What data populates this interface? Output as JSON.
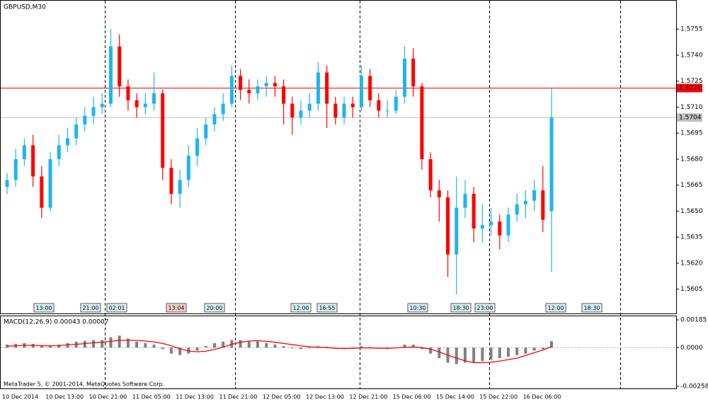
{
  "chart_data": [
    {
      "type": "candlestick",
      "title": "GBPUSD,M30",
      "bull_color": "#1fb4f0",
      "bear_color": "#ff0000",
      "ylim": [
        1.5591,
        1.5771
      ],
      "yticks": [
        1.5755,
        {
          "value": 1.574,
          "label": "1.5740"
        },
        1.5725,
        {
          "value": 1.571,
          "label": "1.5710"
        },
        1.5695,
        {
          "value": 1.568,
          "label": "1.5680"
        },
        1.5665,
        {
          "value": 1.565,
          "label": "1.5650"
        },
        1.5635,
        {
          "value": 1.562,
          "label": "1.5620"
        },
        1.5605
      ],
      "price_lines": [
        {
          "value": 1.5721,
          "color": "#ff0000"
        },
        {
          "value": 1.5704,
          "color": "#c0c0c0"
        }
      ],
      "events": [
        "13:00",
        "21:00",
        "02:01",
        "13:04",
        "20:00",
        "12:00",
        "16:55",
        "10:30",
        "18:30",
        "23:00",
        "12:00",
        "18:30"
      ],
      "candles": [
        [
          1.5664,
          1.5672,
          1.566,
          1.5668
        ],
        [
          1.5668,
          1.5686,
          1.5664,
          1.568
        ],
        [
          1.568,
          1.5692,
          1.5676,
          1.5688
        ],
        [
          1.5688,
          1.5694,
          1.5664,
          1.567
        ],
        [
          1.567,
          1.5676,
          1.5646,
          1.5652
        ],
        [
          1.5652,
          1.5684,
          1.565,
          1.568
        ],
        [
          1.568,
          1.5694,
          1.5676,
          1.5688
        ],
        [
          1.5688,
          1.5698,
          1.5684,
          1.5692
        ],
        [
          1.5692,
          1.5704,
          1.5688,
          1.57
        ],
        [
          1.57,
          1.571,
          1.5696,
          1.5705
        ],
        [
          1.5705,
          1.5716,
          1.57,
          1.571
        ],
        [
          1.571,
          1.5718,
          1.5706,
          1.5712
        ],
        [
          1.5712,
          1.5755,
          1.571,
          1.5745
        ],
        [
          1.5745,
          1.5752,
          1.5716,
          1.5722
        ],
        [
          1.5722,
          1.5726,
          1.5708,
          1.5714
        ],
        [
          1.5714,
          1.5718,
          1.5704,
          1.571
        ],
        [
          1.571,
          1.5718,
          1.5706,
          1.5712
        ],
        [
          1.5712,
          1.573,
          1.5708,
          1.5718
        ],
        [
          1.5718,
          1.572,
          1.5668,
          1.5675
        ],
        [
          1.5675,
          1.568,
          1.5654,
          1.566
        ],
        [
          1.566,
          1.5674,
          1.5652,
          1.5668
        ],
        [
          1.5668,
          1.5688,
          1.5664,
          1.5682
        ],
        [
          1.5682,
          1.5698,
          1.5676,
          1.5692
        ],
        [
          1.5692,
          1.5704,
          1.5688,
          1.57
        ],
        [
          1.57,
          1.571,
          1.5696,
          1.5706
        ],
        [
          1.5706,
          1.5718,
          1.5702,
          1.5712
        ],
        [
          1.5712,
          1.5734,
          1.571,
          1.5728
        ],
        [
          1.5728,
          1.5732,
          1.5714,
          1.572
        ],
        [
          1.572,
          1.5726,
          1.5712,
          1.5718
        ],
        [
          1.5718,
          1.5726,
          1.5714,
          1.5722
        ],
        [
          1.5722,
          1.5728,
          1.5716,
          1.5724
        ],
        [
          1.5724,
          1.5728,
          1.5716,
          1.5722
        ],
        [
          1.5722,
          1.5726,
          1.57,
          1.5712
        ],
        [
          1.5712,
          1.5716,
          1.5694,
          1.5704
        ],
        [
          1.5704,
          1.5714,
          1.57,
          1.5708
        ],
        [
          1.5708,
          1.5718,
          1.5704,
          1.5712
        ],
        [
          1.5712,
          1.5736,
          1.5708,
          1.573
        ],
        [
          1.573,
          1.5734,
          1.5698,
          1.5712
        ],
        [
          1.5712,
          1.5716,
          1.57,
          1.5704
        ],
        [
          1.5704,
          1.5716,
          1.57,
          1.5712
        ],
        [
          1.5712,
          1.5716,
          1.5704,
          1.571
        ],
        [
          1.571,
          1.5734,
          1.5708,
          1.5728
        ],
        [
          1.5728,
          1.5732,
          1.571,
          1.5714
        ],
        [
          1.5714,
          1.5718,
          1.5704,
          1.5708
        ],
        [
          1.5708,
          1.5714,
          1.5704,
          1.5708
        ],
        [
          1.5708,
          1.572,
          1.5706,
          1.5716
        ],
        [
          1.5716,
          1.5745,
          1.5712,
          1.5738
        ],
        [
          1.5738,
          1.5744,
          1.5716,
          1.5722
        ],
        [
          1.5722,
          1.5724,
          1.5674,
          1.568
        ],
        [
          1.568,
          1.5684,
          1.5658,
          1.5662
        ],
        [
          1.5662,
          1.5668,
          1.5644,
          1.5658
        ],
        [
          1.5658,
          1.5662,
          1.5612,
          1.5625
        ],
        [
          1.5625,
          1.567,
          1.5602,
          1.5652
        ],
        [
          1.5652,
          1.5668,
          1.5646,
          1.566
        ],
        [
          1.566,
          1.5664,
          1.5632,
          1.564
        ],
        [
          1.564,
          1.5654,
          1.5632,
          1.5642
        ],
        [
          1.5642,
          1.5652,
          1.5636,
          1.5644
        ],
        [
          1.5644,
          1.5648,
          1.5628,
          1.5636
        ],
        [
          1.5636,
          1.5652,
          1.5632,
          1.5648
        ],
        [
          1.5648,
          1.566,
          1.5644,
          1.5654
        ],
        [
          1.5654,
          1.5662,
          1.5646,
          1.5656
        ],
        [
          1.5656,
          1.5668,
          1.565,
          1.5662
        ],
        [
          1.5662,
          1.5676,
          1.5638,
          1.5645
        ],
        [
          1.565,
          1.5721,
          1.5615,
          1.5704
        ]
      ],
      "categories": [
        "10 Dec 2014",
        "10 Dec 13:00",
        "10 Dec 21:00",
        "11 Dec 05:00",
        "11 Dec 13:00",
        "11 Dec 21:00",
        "12 Dec 05:00",
        "12 Dec 13:00",
        "12 Dec 21:00",
        "15 Dec 06:00",
        "15 Dec 14:00",
        "15 Dec 22:00",
        "16 Dec 06:00"
      ]
    },
    {
      "type": "macd",
      "title": "MACD(12,26,9) 0.00043 0.00007",
      "footer": "MetaTrader 5, © 2001-2014, MetaQuotes Software Corp.",
      "ylim": [
        -0.00272,
        0.00209
      ],
      "yticks": [
        0.00185,
        {
          "value": 0,
          "label": "0.0000"
        },
        -0.00258
      ],
      "series": [
        {
          "name": "MACD",
          "color": "#808080",
          "values": [
            0.0002,
            0.00025,
            0.0003,
            0.00025,
            0.0001,
            0.0001,
            0.0002,
            0.0003,
            0.0004,
            0.00045,
            0.0005,
            0.0005,
            0.0007,
            0.0008,
            0.0006,
            0.0004,
            0.0003,
            0.0002,
            -0.0001,
            -0.0004,
            -0.0005,
            -0.0004,
            -0.0002,
            0.0001,
            0.0003,
            0.0004,
            0.0005,
            0.0005,
            0.0004,
            0.0004,
            0.0003,
            0.0002,
            0.0001,
            -5e-05,
            -0.0001,
            -5e-05,
            0.0001,
            5e-05,
            -5e-05,
            0,
            0,
            0.0001,
            5e-05,
            -5e-05,
            -0.0001,
            0,
            0.0002,
            0.0002,
            -0.0001,
            -0.0004,
            -0.0007,
            -0.001,
            -0.0011,
            -0.001,
            -0.001,
            -0.0009,
            -0.0008,
            -0.0007,
            -0.0006,
            -0.0005,
            -0.0004,
            -0.0002,
            -0.0001,
            0.00043
          ]
        },
        {
          "name": "Signal",
          "color": "#ff0000",
          "values": [
            0.0001,
            0.00012,
            0.00015,
            0.00015,
            0.00013,
            0.00012,
            0.00014,
            0.00018,
            0.00022,
            0.00027,
            0.00032,
            0.00036,
            0.00042,
            0.00048,
            0.0005,
            0.00048,
            0.00044,
            0.00038,
            0.00028,
            0.00012,
            -8e-05,
            -0.00022,
            -0.00028,
            -0.00024,
            -0.00012,
            4e-05,
            0.00022,
            0.00036,
            0.00044,
            0.00046,
            0.00042,
            0.00036,
            0.00028,
            0.0002,
            0.00012,
            6e-05,
            2e-05,
            0,
            -4e-05,
            -6e-05,
            -4e-05,
            -2e-05,
            -2e-05,
            -4e-05,
            -4e-05,
            -2e-05,
            2e-05,
            4e-05,
            0,
            -0.0001,
            -0.00028,
            -0.0005,
            -0.0007,
            -0.00088,
            -0.001,
            -0.001,
            -0.00098,
            -0.0009,
            -0.0008,
            -0.0007,
            -0.00052,
            -0.00034,
            -0.00016,
            7e-05
          ]
        }
      ]
    }
  ]
}
